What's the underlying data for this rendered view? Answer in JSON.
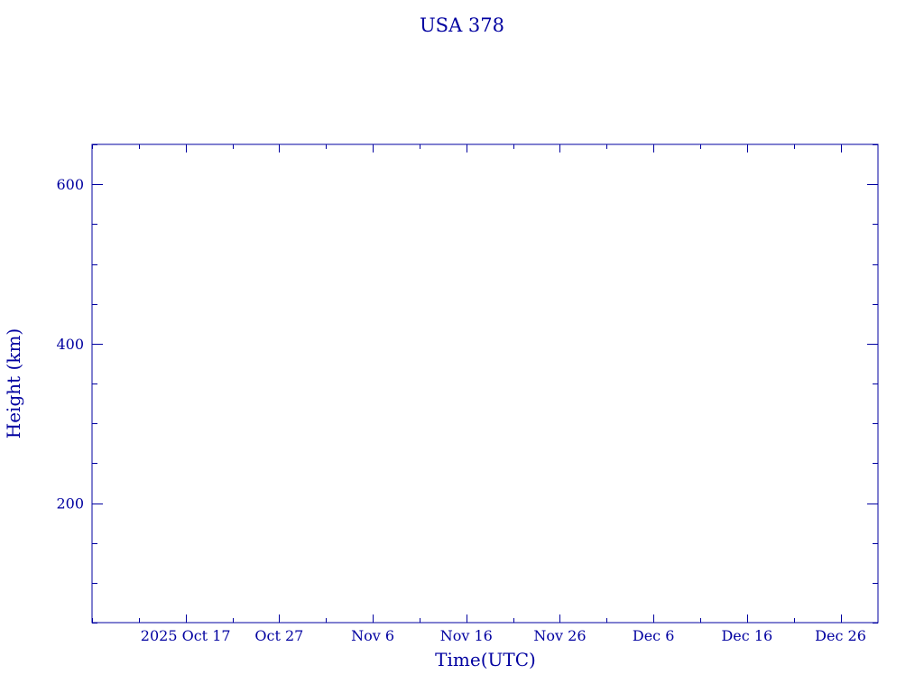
{
  "chart_data": {
    "type": "line",
    "title": "USA 378",
    "xlabel": "Time(UTC)",
    "ylabel": "Height (km)",
    "xlim": [
      "2025-10-07",
      "2025-12-30"
    ],
    "ylim": [
      50,
      650
    ],
    "x_ticks": [
      {
        "date": "2025-10-17",
        "label": "2025 Oct 17"
      },
      {
        "date": "2025-10-27",
        "label": "Oct 27"
      },
      {
        "date": "2025-11-06",
        "label": "Nov  6"
      },
      {
        "date": "2025-11-16",
        "label": "Nov 16"
      },
      {
        "date": "2025-11-26",
        "label": "Nov 26"
      },
      {
        "date": "2025-12-06",
        "label": "Dec  6"
      },
      {
        "date": "2025-12-16",
        "label": "Dec 16"
      },
      {
        "date": "2025-12-26",
        "label": "Dec 26"
      }
    ],
    "x_minor_step_days": 5,
    "y_ticks": [
      200,
      400,
      600
    ],
    "y_minor_step": 50,
    "grid": false,
    "series": [],
    "color": "#0000a0"
  }
}
